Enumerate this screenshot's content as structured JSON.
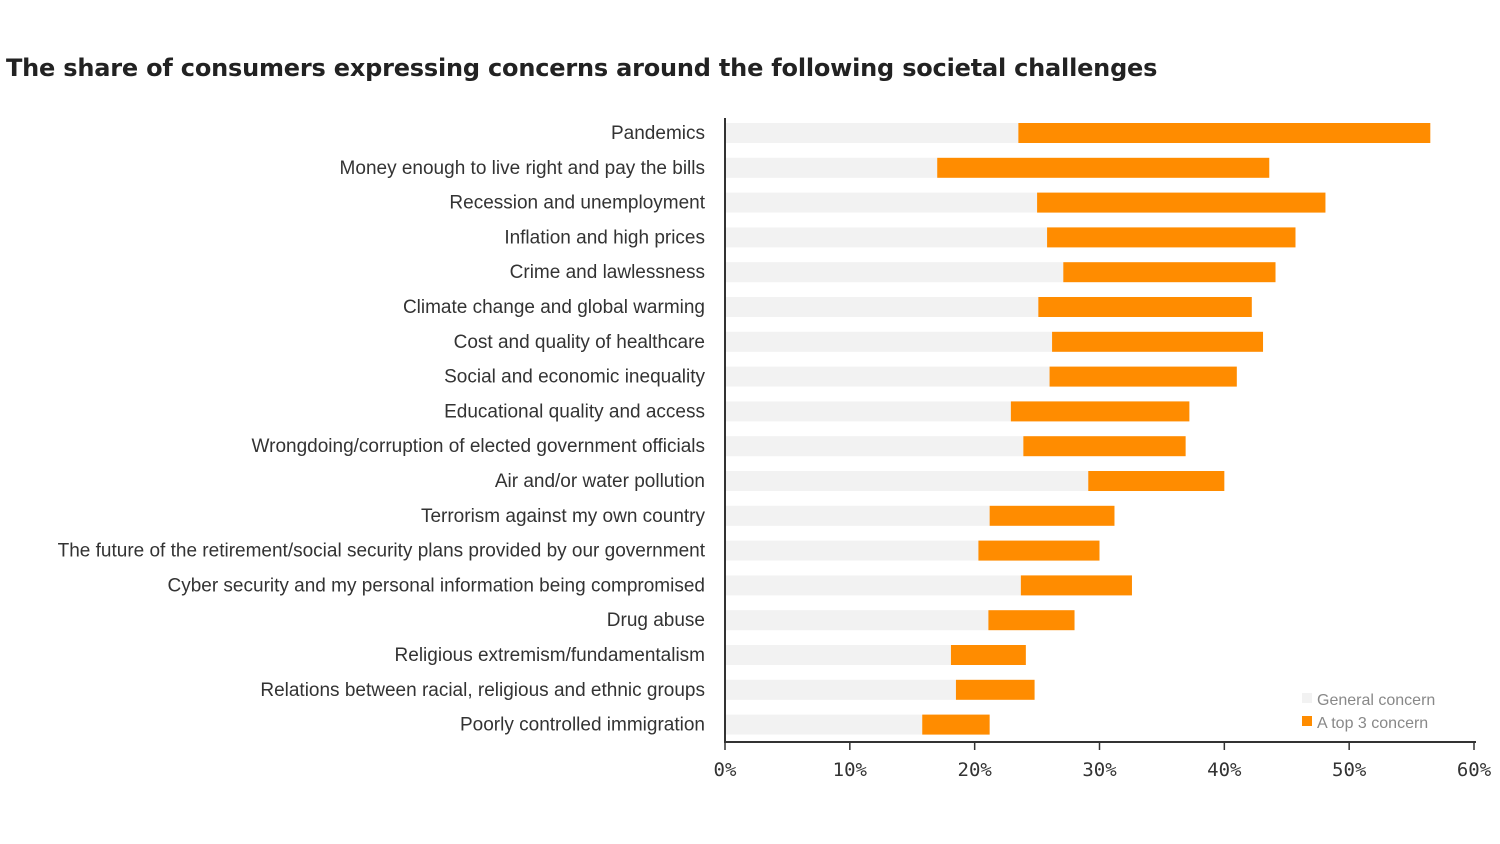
{
  "chart_data": {
    "type": "bar",
    "title": "The share of consumers expressing concerns around the following societal challenges",
    "categories": [
      "Pandemics",
      "Money enough to live right and pay the bills",
      "Recession and unemployment",
      "Inflation and high prices",
      "Crime and lawlessness",
      "Climate change and global warming",
      "Cost and quality of healthcare",
      "Social and economic inequality",
      "Educational quality and access",
      "Wrongdoing/corruption of elected government officials",
      "Air and/or water pollution",
      "Terrorism against my own country",
      "The future of the retirement/social security plans provided by our government",
      "Cyber security and my personal information being compromised",
      "Drug abuse",
      "Religious extremism/fundamentalism",
      "Relations between racial, religious and ethnic groups",
      "Poorly controlled immigration"
    ],
    "series": [
      {
        "name": "General concern",
        "color": "#f2f2f2",
        "values": [
          23.5,
          17,
          25,
          25.8,
          27.1,
          25.1,
          26.2,
          26,
          22.9,
          23.9,
          29.1,
          21.2,
          20.3,
          23.7,
          21.1,
          18.1,
          18.5,
          15.8
        ]
      },
      {
        "name": "A top 3 concern",
        "color": "#ff8c00",
        "values": [
          33,
          26.6,
          23.1,
          19.9,
          17,
          17.1,
          16.9,
          15,
          14.3,
          13,
          10.9,
          10,
          9.7,
          8.9,
          6.9,
          6,
          6.3,
          5.4
        ]
      }
    ],
    "xlabel": "",
    "ylabel": "",
    "xlim": [
      0,
      60
    ],
    "xticks": [
      "0%",
      "10%",
      "20%",
      "30%",
      "40%",
      "50%",
      "60%"
    ],
    "legend_position": "bottom-right",
    "stacked": true,
    "orientation": "horizontal"
  }
}
